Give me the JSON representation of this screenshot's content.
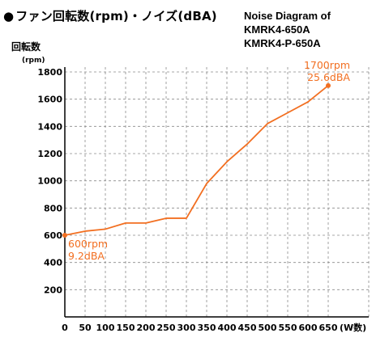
{
  "header": {
    "bullet": "●",
    "title": "ファン回転数(rpm)・ノイズ(dBA)"
  },
  "chart_data": {
    "type": "line",
    "title_lines": [
      "Noise Diagram of",
      "KMRK4-650A",
      "KMRK4-P-650A"
    ],
    "ylabel": "回転数",
    "ylabel_unit": "(rpm)",
    "xlabel": "(W数)",
    "xlim": [
      0,
      650
    ],
    "ylim": [
      0,
      1800
    ],
    "x_ticks": [
      0,
      50,
      100,
      150,
      200,
      250,
      300,
      350,
      400,
      450,
      500,
      550,
      600,
      650
    ],
    "y_ticks": [
      200,
      400,
      600,
      800,
      1000,
      1200,
      1400,
      1600,
      1800
    ],
    "grid": true,
    "series": [
      {
        "color": "#f26f21",
        "x": [
          0,
          50,
          100,
          150,
          200,
          250,
          300,
          350,
          400,
          450,
          500,
          550,
          600,
          650
        ],
        "y": [
          600,
          630,
          645,
          690,
          690,
          725,
          725,
          980,
          1140,
          1270,
          1420,
          1500,
          1580,
          1700
        ]
      }
    ],
    "annotations": [
      {
        "lines": [
          "600rpm",
          "9.2dBA"
        ],
        "x": 0,
        "y": 600
      },
      {
        "lines": [
          "1700rpm",
          "25.6dBA"
        ],
        "x": 650,
        "y": 1700
      }
    ]
  }
}
